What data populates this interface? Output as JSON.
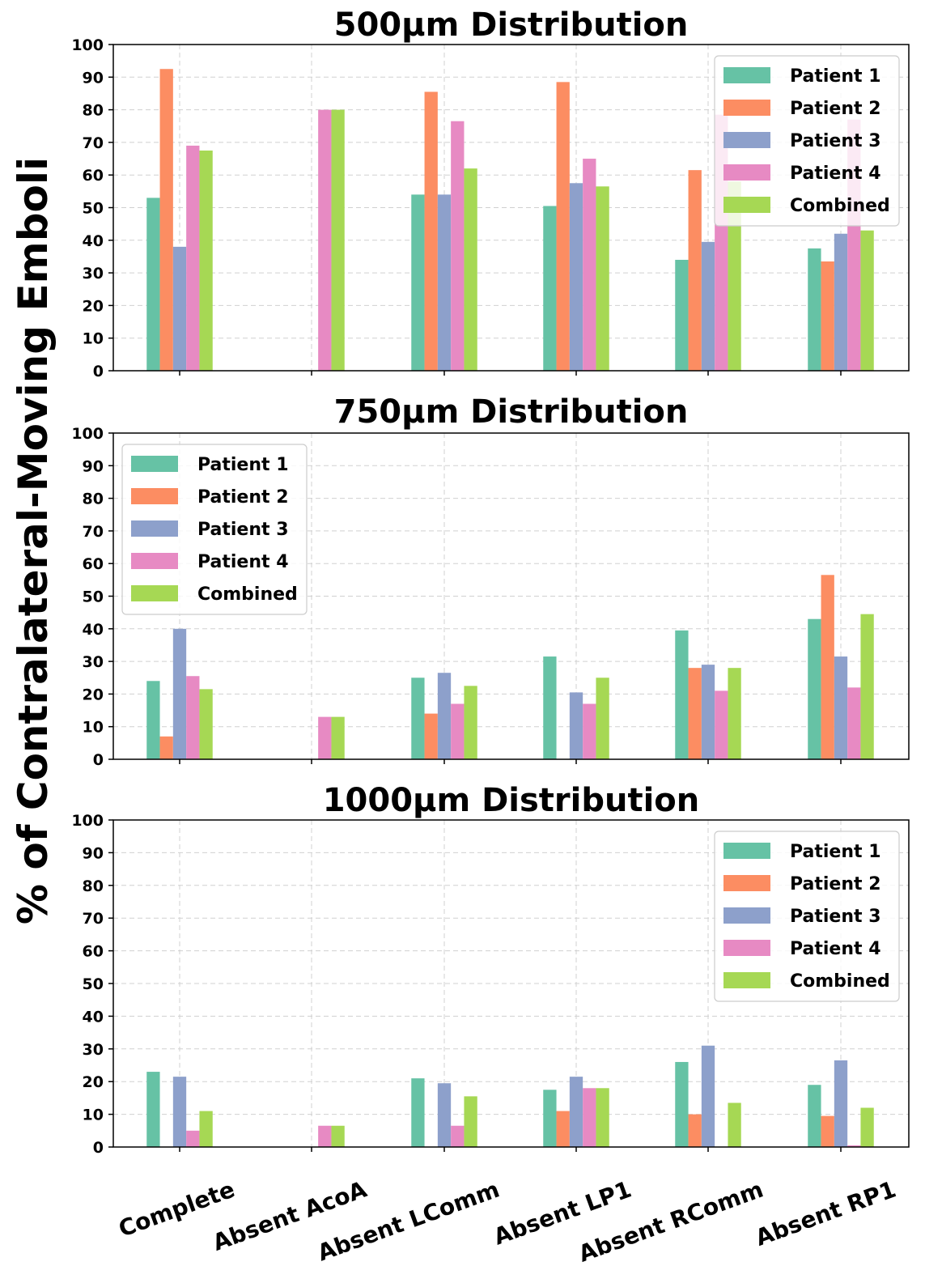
{
  "figure": {
    "ylabel": "% of Contralateral-Moving Emboli"
  },
  "chart_data": [
    {
      "type": "bar",
      "title": "500μm Distribution",
      "categories": [
        "Complete",
        "Absent AcoA",
        "Absent LComm",
        "Absent LP1",
        "Absent RComm",
        "Absent RP1"
      ],
      "ylim": [
        0,
        100
      ],
      "yticks": [
        0,
        10,
        20,
        30,
        40,
        50,
        60,
        70,
        80,
        90,
        100
      ],
      "grid": true,
      "legend_position": "top-right",
      "series": [
        {
          "name": "Patient 1",
          "color": "#66c2a5",
          "values": [
            53,
            0,
            54,
            50.5,
            34,
            37.5
          ]
        },
        {
          "name": "Patient 2",
          "color": "#fc8d62",
          "values": [
            92.5,
            0,
            85.5,
            88.5,
            61.5,
            33.5
          ]
        },
        {
          "name": "Patient 3",
          "color": "#8da0cb",
          "values": [
            38,
            0,
            54,
            57.5,
            39.5,
            42
          ]
        },
        {
          "name": "Patient 4",
          "color": "#e78ac3",
          "values": [
            69,
            80,
            76.5,
            65,
            78.5,
            77
          ]
        },
        {
          "name": "Combined",
          "color": "#a6d854",
          "values": [
            67.5,
            80,
            62,
            56.5,
            58,
            43
          ]
        }
      ]
    },
    {
      "type": "bar",
      "title": "750μm Distribution",
      "categories": [
        "Complete",
        "Absent AcoA",
        "Absent LComm",
        "Absent LP1",
        "Absent RComm",
        "Absent RP1"
      ],
      "ylim": [
        0,
        100
      ],
      "yticks": [
        0,
        10,
        20,
        30,
        40,
        50,
        60,
        70,
        80,
        90,
        100
      ],
      "grid": true,
      "legend_position": "top-left",
      "series": [
        {
          "name": "Patient 1",
          "color": "#66c2a5",
          "values": [
            24,
            0,
            25,
            31.5,
            39.5,
            43
          ]
        },
        {
          "name": "Patient 2",
          "color": "#fc8d62",
          "values": [
            7,
            0,
            14,
            0,
            28,
            56.5
          ]
        },
        {
          "name": "Patient 3",
          "color": "#8da0cb",
          "values": [
            40,
            0,
            26.5,
            20.5,
            29,
            31.5
          ]
        },
        {
          "name": "Patient 4",
          "color": "#e78ac3",
          "values": [
            25.5,
            13,
            17,
            17,
            21,
            22
          ]
        },
        {
          "name": "Combined",
          "color": "#a6d854",
          "values": [
            21.5,
            13,
            22.5,
            25,
            28,
            44.5
          ]
        }
      ]
    },
    {
      "type": "bar",
      "title": "1000μm Distribution",
      "categories": [
        "Complete",
        "Absent AcoA",
        "Absent LComm",
        "Absent LP1",
        "Absent RComm",
        "Absent RP1"
      ],
      "ylim": [
        0,
        100
      ],
      "yticks": [
        0,
        10,
        20,
        30,
        40,
        50,
        60,
        70,
        80,
        90,
        100
      ],
      "grid": true,
      "legend_position": "top-right",
      "series": [
        {
          "name": "Patient 1",
          "color": "#66c2a5",
          "values": [
            23,
            0,
            21,
            17.5,
            26,
            19
          ]
        },
        {
          "name": "Patient 2",
          "color": "#fc8d62",
          "values": [
            0,
            0,
            0,
            11,
            10,
            9.5
          ]
        },
        {
          "name": "Patient 3",
          "color": "#8da0cb",
          "values": [
            21.5,
            0,
            19.5,
            21.5,
            31,
            26.5
          ]
        },
        {
          "name": "Patient 4",
          "color": "#e78ac3",
          "values": [
            5,
            6.5,
            6.5,
            18,
            0,
            0.5
          ]
        },
        {
          "name": "Combined",
          "color": "#a6d854",
          "values": [
            11,
            6.5,
            15.5,
            18,
            13.5,
            12
          ]
        }
      ]
    }
  ]
}
